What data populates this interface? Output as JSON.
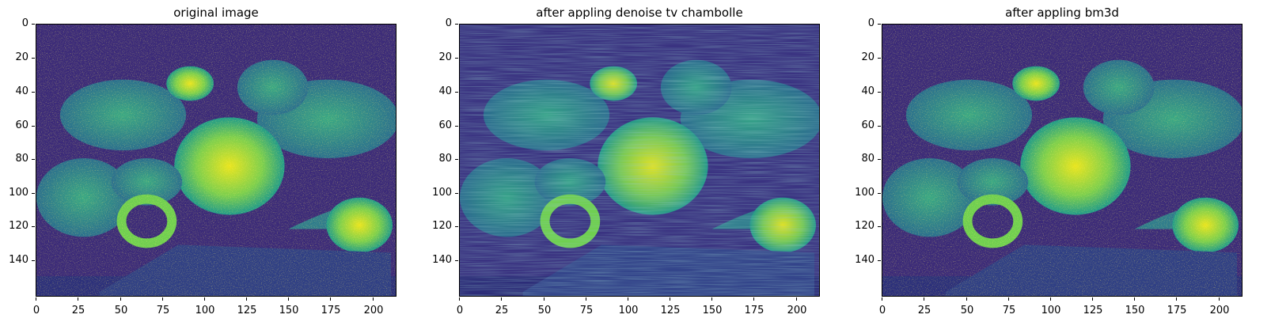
{
  "panels": [
    {
      "title": "original image"
    },
    {
      "title": "after appling denoise tv chambolle"
    },
    {
      "title": "after appling bm3d"
    }
  ],
  "y_ticks": [
    "0",
    "20",
    "40",
    "60",
    "80",
    "100",
    "120",
    "140"
  ],
  "x_ticks": [
    "0",
    "25",
    "50",
    "75",
    "100",
    "125",
    "150",
    "175",
    "200"
  ],
  "colormap": {
    "low": "#3b1d6e",
    "mid": "#21918c",
    "high": "#fde725"
  }
}
